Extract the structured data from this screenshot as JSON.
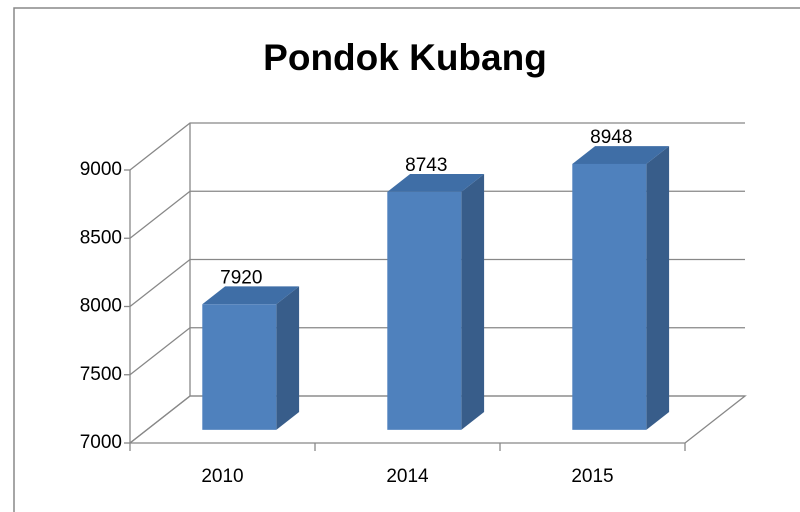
{
  "chart_data": {
    "type": "bar3d",
    "title": "Pondok Kubang",
    "categories": [
      "2010",
      "2014",
      "2015"
    ],
    "values": [
      7920,
      8743,
      8948
    ],
    "color": "#4f81bd",
    "ylim": [
      7000,
      9000
    ],
    "yticks": [
      7000,
      7500,
      8000,
      8500,
      9000
    ],
    "grid": true
  }
}
